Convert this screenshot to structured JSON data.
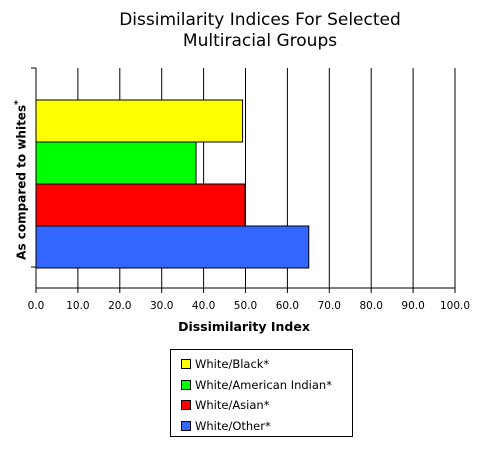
{
  "chart_data": {
    "type": "bar",
    "orientation": "horizontal",
    "title": "Dissimilarity Indices For Selected\nMultiracial Groups",
    "title_line1": "Dissimilarity Indices For Selected",
    "title_line2": "Multiracial Groups",
    "xlabel": "Dissimilarity Index",
    "ylabel": "As compared to whites",
    "ylabel_sup": "*",
    "xlim": [
      0,
      100
    ],
    "x_ticks": [
      "0.0",
      "10.0",
      "20.0",
      "30.0",
      "40.0",
      "50.0",
      "60.0",
      "70.0",
      "80.0",
      "90.0",
      "100.0"
    ],
    "grid": true,
    "legend_position": "bottom",
    "series": [
      {
        "name": "White/Black*",
        "value": 49.3,
        "color": "#ffff00"
      },
      {
        "name": "White/American Indian*",
        "value": 38.2,
        "color": "#00ff00"
      },
      {
        "name": "White/Asian*",
        "value": 49.9,
        "color": "#ff0000"
      },
      {
        "name": "White/Other*",
        "value": 65.1,
        "color": "#3366ff"
      }
    ]
  }
}
